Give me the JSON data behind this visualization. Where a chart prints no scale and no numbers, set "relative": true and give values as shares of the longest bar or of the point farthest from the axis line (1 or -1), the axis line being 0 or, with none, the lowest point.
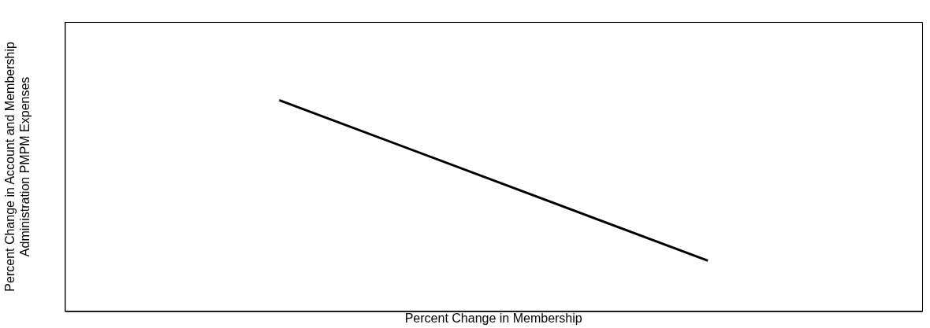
{
  "chart_data": {
    "type": "line",
    "relative": true,
    "xlabel": "Percent Change in Membership",
    "ylabel": "Percent Change in Account and Membership\nAdministration PMPM Expenses",
    "categories": [
      null,
      null
    ],
    "series": [
      {
        "color": "#000000",
        "values": [
          1,
          0.24
        ]
      }
    ],
    "legend": false,
    "grid": false,
    "marker": "none",
    "line_style": "solid"
  }
}
